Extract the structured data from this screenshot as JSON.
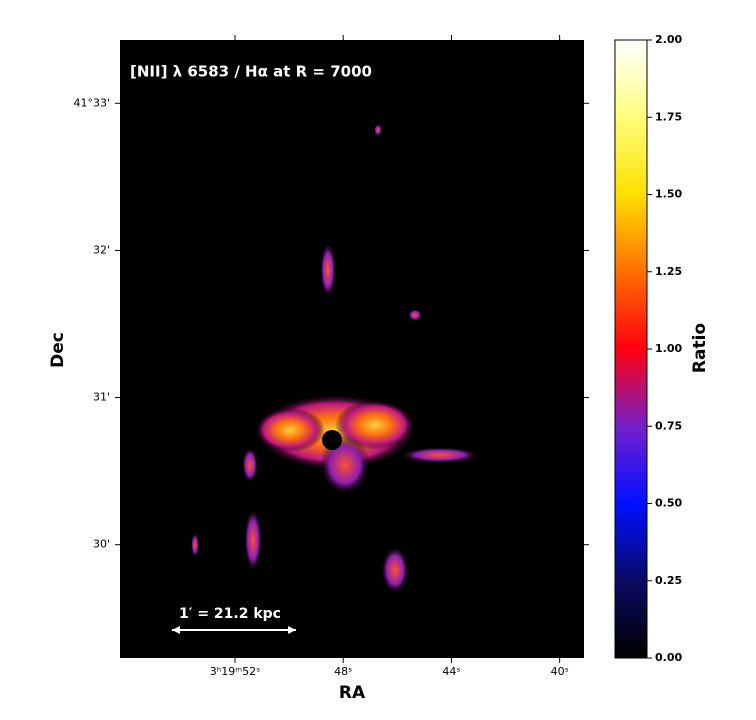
{
  "chart_data": {
    "type": "image",
    "annotation": "[NII] λ 6583 / Hα at R = 7000",
    "scale_bar": "1′ = 21.2 kpc",
    "xlabel": "RA",
    "ylabel": "Dec",
    "xlim": [
      56.25,
      39.1
    ],
    "xticks": [
      {
        "value": 52,
        "label": "3ʰ19ᵐ52ˢ"
      },
      {
        "value": 48,
        "label": "48ˢ"
      },
      {
        "value": 44,
        "label": "44ˢ"
      },
      {
        "value": 40,
        "label": "40ˢ"
      }
    ],
    "ylim": [
      29.23,
      33.43
    ],
    "yticks": [
      {
        "value": 33,
        "label": "41°33'"
      },
      {
        "value": 32,
        "label": "32'"
      },
      {
        "value": 31,
        "label": "31'"
      },
      {
        "value": 30,
        "label": "30'"
      }
    ],
    "colorbar": {
      "label": "Ratio",
      "lim": [
        0,
        2
      ],
      "ticks": [
        {
          "value": 0,
          "label": "0.00"
        },
        {
          "value": 0.25,
          "label": "0.25"
        },
        {
          "value": 0.5,
          "label": "0.50"
        },
        {
          "value": 0.75,
          "label": "0.75"
        },
        {
          "value": 1,
          "label": "1.00"
        },
        {
          "value": 1.25,
          "label": "1.25"
        },
        {
          "value": 1.5,
          "label": "1.50"
        },
        {
          "value": 1.75,
          "label": "1.75"
        },
        {
          "value": 2,
          "label": "2.00"
        }
      ]
    }
  }
}
